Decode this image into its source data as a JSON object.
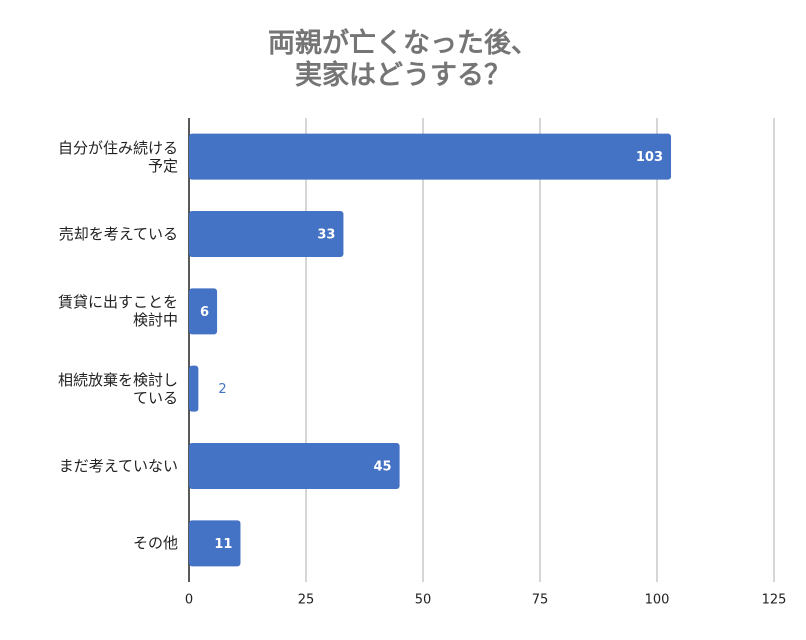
{
  "chart_data": {
    "type": "barh",
    "title": "両親が亡くなった後、\n実家はどうする？",
    "categories": [
      "自分が住み続ける予定",
      "売却を考えている",
      "賃貸に出すことを検討中",
      "相続放棄を検討している",
      "まだ考えていない",
      "その他"
    ],
    "values": [
      103,
      33,
      6,
      2,
      45,
      11
    ],
    "color": "#4472c4",
    "xlim": [
      0,
      125
    ],
    "xticks": [
      0,
      25,
      50,
      75,
      100,
      125
    ],
    "grid": true
  }
}
